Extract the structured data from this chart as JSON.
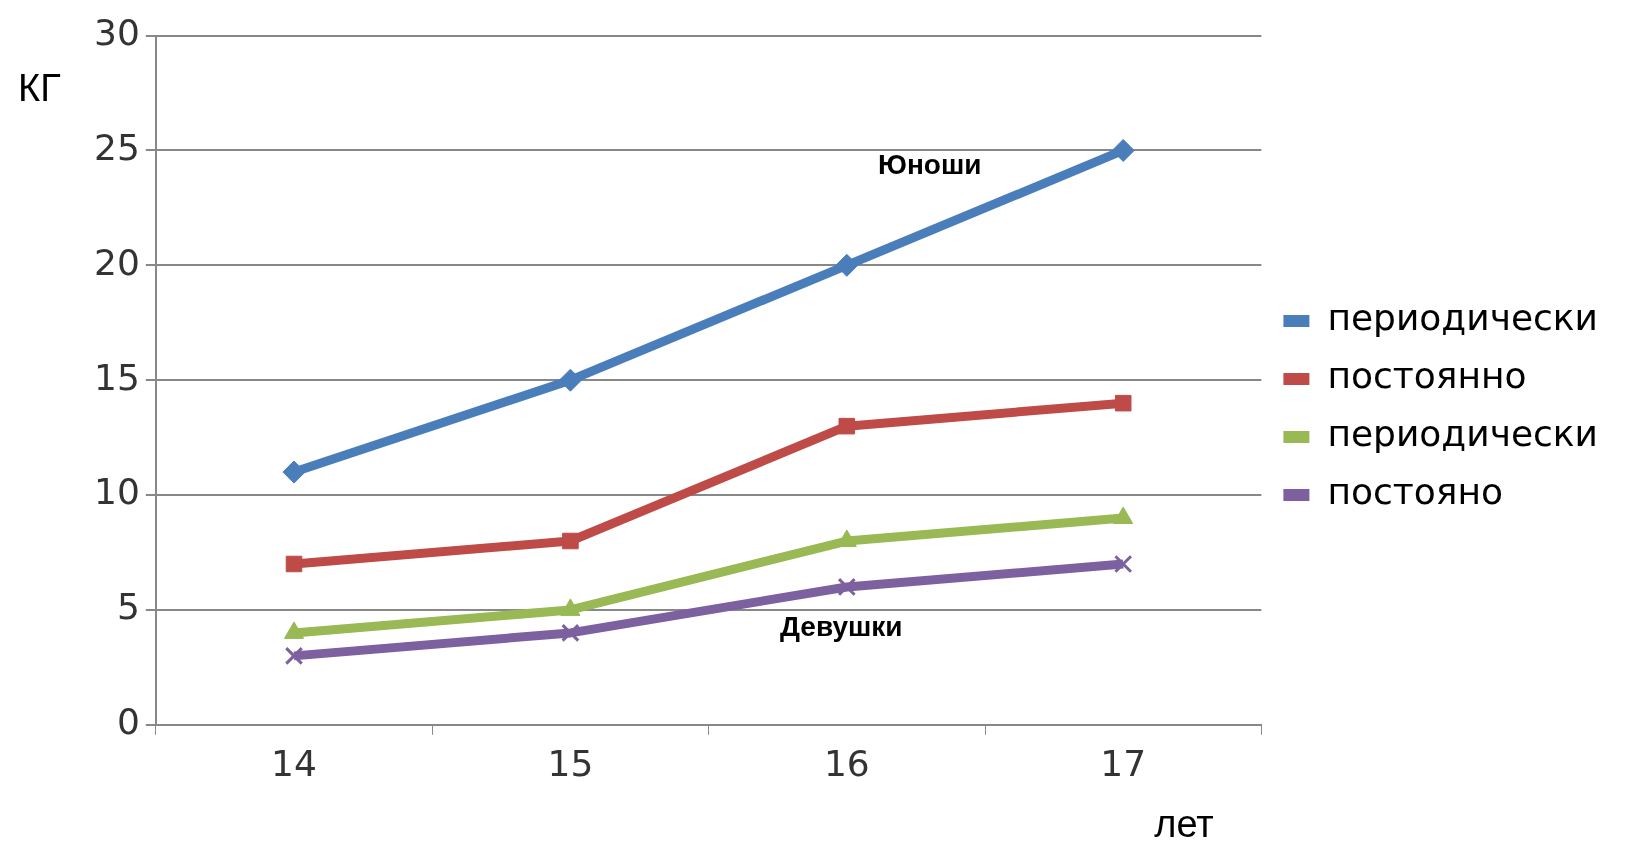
{
  "chart_data": {
    "type": "line",
    "xlabel": "лет",
    "ylabel": "КГ",
    "categories": [
      "14",
      "15",
      "16",
      "17"
    ],
    "series": [
      {
        "name": "периодически",
        "color": "#4a7ebb",
        "marker": "diamond",
        "values": [
          11,
          15,
          20,
          25
        ]
      },
      {
        "name": "постоянно",
        "color": "#be4b48",
        "marker": "square",
        "values": [
          7,
          8,
          13,
          14
        ]
      },
      {
        "name": "периодически",
        "color": "#98b954",
        "marker": "triangle",
        "values": [
          4,
          5,
          8,
          9
        ]
      },
      {
        "name": "постояно",
        "color": "#7d60a0",
        "marker": "cross",
        "values": [
          3,
          4,
          6,
          7
        ]
      }
    ],
    "ylim": [
      0,
      30
    ],
    "yticks": [
      0,
      5,
      10,
      15,
      20,
      25,
      30
    ],
    "grid": "y",
    "legend": "right",
    "annotations": [
      "Юноши",
      "Девушки"
    ]
  }
}
